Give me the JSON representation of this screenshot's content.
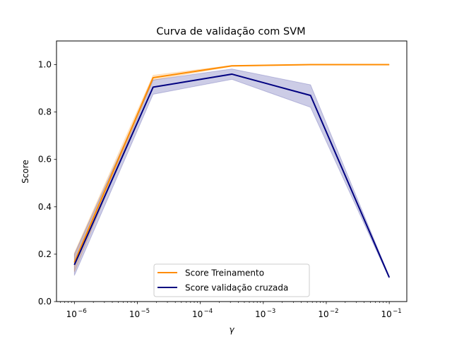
{
  "chart_data": {
    "type": "line",
    "title": "Curva de validação com SVM",
    "xlabel": "γ",
    "ylabel": "Score",
    "xscale": "log",
    "xlim": [
      5.2e-07,
      0.19
    ],
    "ylim": [
      0,
      1.1
    ],
    "grid": false,
    "legend_position": "lower center",
    "x": [
      1e-06,
      1.778e-05,
      0.0003162,
      0.005623,
      0.1
    ],
    "x_ticks": [
      {
        "value": 1e-06,
        "label_base": "10",
        "label_exp": "−6"
      },
      {
        "value": 1e-05,
        "label_base": "10",
        "label_exp": "−5"
      },
      {
        "value": 0.0001,
        "label_base": "10",
        "label_exp": "−4"
      },
      {
        "value": 0.001,
        "label_base": "10",
        "label_exp": "−3"
      },
      {
        "value": 0.01,
        "label_base": "10",
        "label_exp": "−2"
      },
      {
        "value": 0.1,
        "label_base": "10",
        "label_exp": "−1"
      }
    ],
    "y_ticks": [
      {
        "value": 0.0,
        "label": "0.0"
      },
      {
        "value": 0.2,
        "label": "0.2"
      },
      {
        "value": 0.4,
        "label": "0.4"
      },
      {
        "value": 0.6,
        "label": "0.6"
      },
      {
        "value": 0.8,
        "label": "0.8"
      },
      {
        "value": 1.0,
        "label": "1.0"
      }
    ],
    "series": [
      {
        "name": "Score Treinamento",
        "color": "#ff8c00",
        "values": [
          0.165,
          0.945,
          0.995,
          1.0,
          1.0
        ],
        "band_lower": [
          0.125,
          0.935,
          0.993,
          0.999,
          0.999
        ],
        "band_upper": [
          0.205,
          0.955,
          0.997,
          1.0,
          1.0
        ]
      },
      {
        "name": "Score validação cruzada",
        "color": "#000080",
        "values": [
          0.155,
          0.905,
          0.96,
          0.87,
          0.102
        ],
        "band_lower": [
          0.11,
          0.875,
          0.938,
          0.82,
          0.098
        ],
        "band_upper": [
          0.2,
          0.935,
          0.982,
          0.915,
          0.106
        ]
      }
    ]
  }
}
